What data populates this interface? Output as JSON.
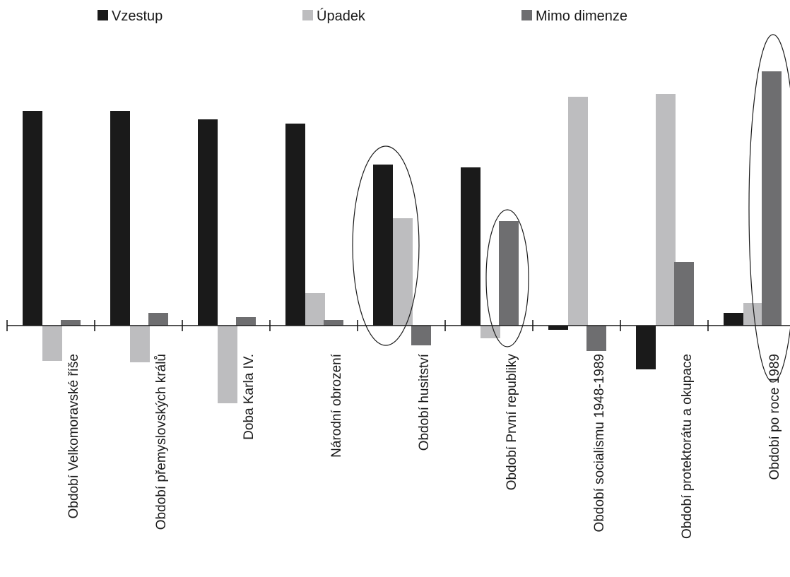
{
  "chart_data": {
    "type": "bar",
    "title": "",
    "xlabel": "",
    "ylabel": "",
    "ylim": [
      -1.2,
      3.6
    ],
    "grid": false,
    "legend_position": "top",
    "categories": [
      "Období Velkomoravské říše",
      "Období přemyslovských králů",
      "Doba Karla IV.",
      "Národní obrození",
      "Období husitství",
      "Období První republiky",
      "Období socialismu 1948-1989",
      "Období protektorátu a okupace",
      "Období po roce 1989"
    ],
    "series": [
      {
        "name": "Vzestup",
        "color": "#1a1a1a",
        "values": [
          3.04,
          3.04,
          2.92,
          2.86,
          2.28,
          2.24,
          -0.06,
          -0.62,
          0.18
        ]
      },
      {
        "name": "Úpadek",
        "color": "#bdbdbf",
        "values": [
          -0.5,
          -0.52,
          -1.1,
          0.46,
          1.52,
          -0.18,
          3.24,
          3.28,
          0.32
        ]
      },
      {
        "name": "Mimo dimenze",
        "color": "#6e6e70",
        "values": [
          0.08,
          0.18,
          0.12,
          0.08,
          -0.28,
          1.48,
          -0.36,
          0.9,
          3.6
        ]
      }
    ],
    "annotations": [
      "ellipse around Období husitství",
      "ellipse around Mimo dimenze in Období První republiky",
      "ellipse around Mimo dimenze in Období po roce 1989"
    ]
  }
}
